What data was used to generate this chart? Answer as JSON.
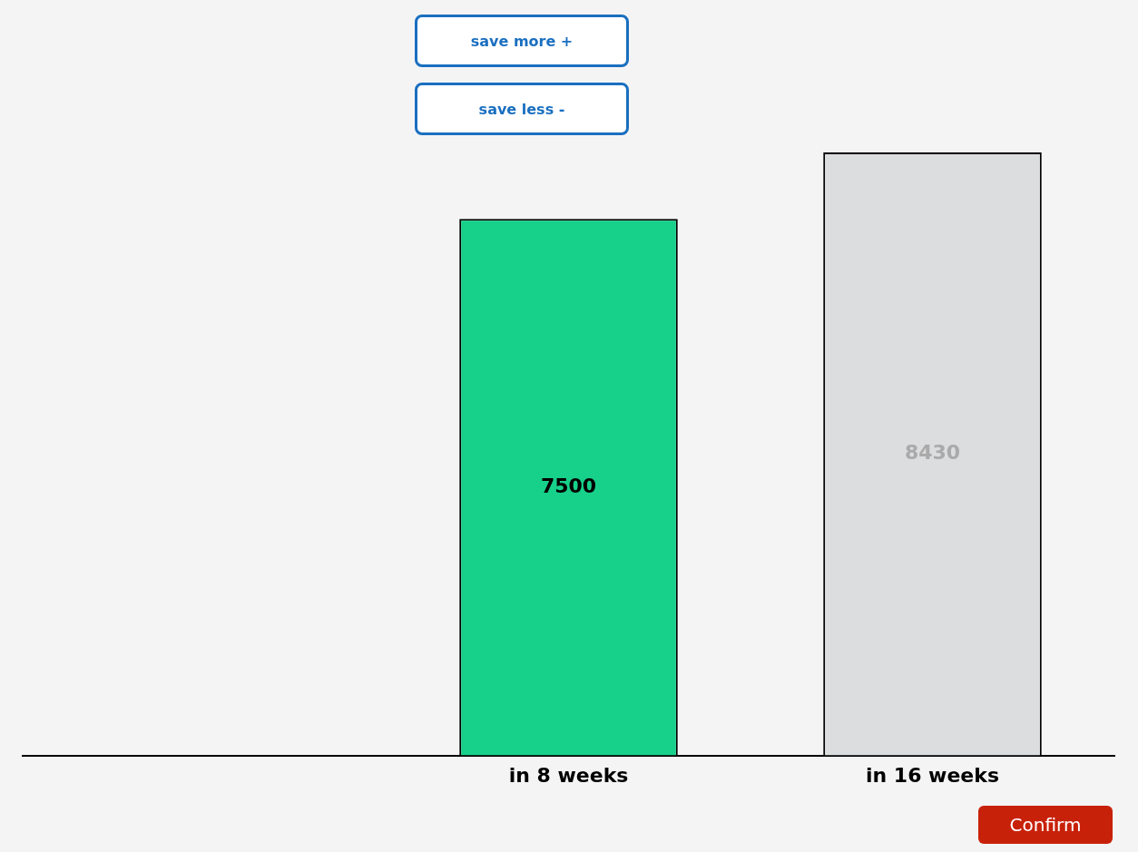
{
  "chart_data": {
    "type": "bar",
    "categories": [
      null,
      "in 8 weeks",
      "in 16 weeks"
    ],
    "values": [
      null,
      7500,
      8430
    ],
    "colors": [
      "#17d08a",
      "#17d08a",
      "#dcdddf"
    ],
    "ylim": [
      0,
      8430
    ],
    "tick_labels": "x",
    "grid": false,
    "legend": false,
    "data_labels": true,
    "annotations": [
      "save more +",
      "save less -",
      "Confirm"
    ]
  }
}
